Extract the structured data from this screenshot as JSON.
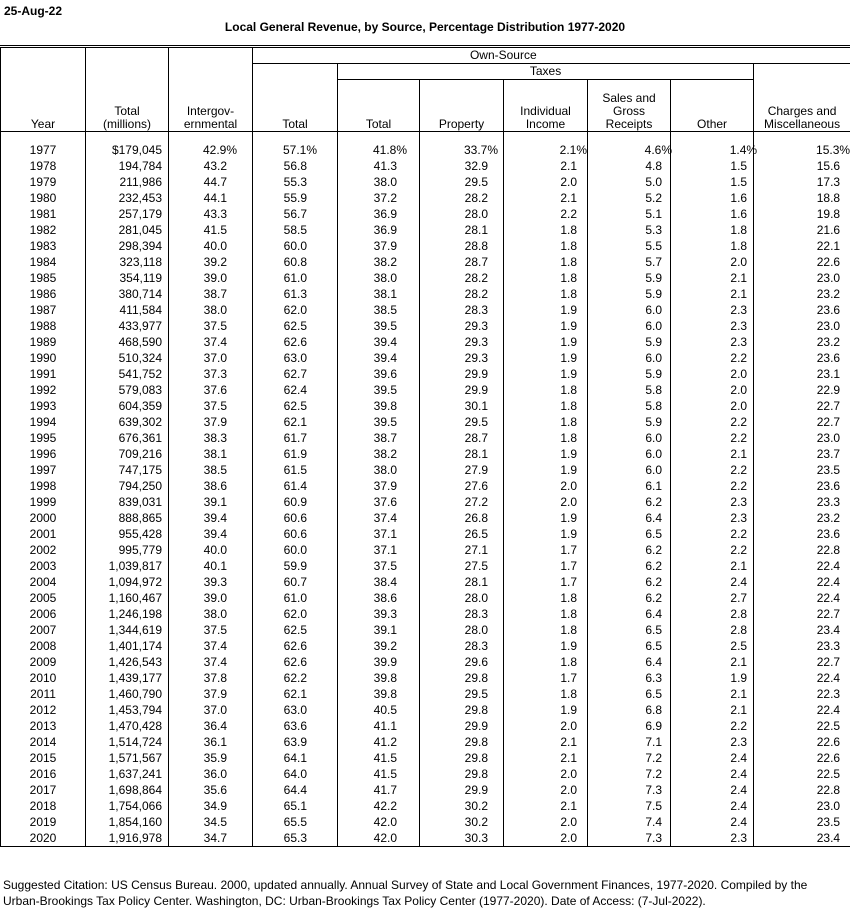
{
  "report": {
    "date": "25-Aug-22",
    "title": "Local General Revenue, by Source, Percentage Distribution 1977-2020"
  },
  "table": {
    "headers": {
      "own_source": "Own-Source",
      "taxes": "Taxes",
      "year": "Year",
      "total_millions": "Total\n(millions)",
      "intergovernmental": "Intergov-\nernmental",
      "own_source_total": "Total",
      "taxes_total": "Total",
      "property": "Property",
      "individual_income": "Individual\nIncome",
      "sales_gross_receipts": "Sales and\nGross\nReceipts",
      "other": "Other",
      "charges_misc": "Charges and\nMiscellaneous"
    },
    "column_keys": [
      "year",
      "total_millions",
      "intergovernmental",
      "os_total",
      "tax_total",
      "property",
      "individual_income",
      "sales_gross_receipts",
      "other",
      "charges_misc"
    ],
    "rows": [
      [
        "1977",
        "$179,045",
        "42.9%",
        "57.1%",
        "41.8%",
        "33.7%",
        "2.1%",
        "4.6%",
        "1.4%",
        "15.3%"
      ],
      [
        "1978",
        "194,784",
        "43.2",
        "56.8",
        "41.3",
        "32.9",
        "2.1",
        "4.8",
        "1.5",
        "15.6"
      ],
      [
        "1979",
        "211,986",
        "44.7",
        "55.3",
        "38.0",
        "29.5",
        "2.0",
        "5.0",
        "1.5",
        "17.3"
      ],
      [
        "1980",
        "232,453",
        "44.1",
        "55.9",
        "37.2",
        "28.2",
        "2.1",
        "5.2",
        "1.6",
        "18.8"
      ],
      [
        "1981",
        "257,179",
        "43.3",
        "56.7",
        "36.9",
        "28.0",
        "2.2",
        "5.1",
        "1.6",
        "19.8"
      ],
      [
        "1982",
        "281,045",
        "41.5",
        "58.5",
        "36.9",
        "28.1",
        "1.8",
        "5.3",
        "1.8",
        "21.6"
      ],
      [
        "1983",
        "298,394",
        "40.0",
        "60.0",
        "37.9",
        "28.8",
        "1.8",
        "5.5",
        "1.8",
        "22.1"
      ],
      [
        "1984",
        "323,118",
        "39.2",
        "60.8",
        "38.2",
        "28.7",
        "1.8",
        "5.7",
        "2.0",
        "22.6"
      ],
      [
        "1985",
        "354,119",
        "39.0",
        "61.0",
        "38.0",
        "28.2",
        "1.8",
        "5.9",
        "2.1",
        "23.0"
      ],
      [
        "1986",
        "380,714",
        "38.7",
        "61.3",
        "38.1",
        "28.2",
        "1.8",
        "5.9",
        "2.1",
        "23.2"
      ],
      [
        "1987",
        "411,584",
        "38.0",
        "62.0",
        "38.5",
        "28.3",
        "1.9",
        "6.0",
        "2.3",
        "23.6"
      ],
      [
        "1988",
        "433,977",
        "37.5",
        "62.5",
        "39.5",
        "29.3",
        "1.9",
        "6.0",
        "2.3",
        "23.0"
      ],
      [
        "1989",
        "468,590",
        "37.4",
        "62.6",
        "39.4",
        "29.3",
        "1.9",
        "5.9",
        "2.3",
        "23.2"
      ],
      [
        "1990",
        "510,324",
        "37.0",
        "63.0",
        "39.4",
        "29.3",
        "1.9",
        "6.0",
        "2.2",
        "23.6"
      ],
      [
        "1991",
        "541,752",
        "37.3",
        "62.7",
        "39.6",
        "29.9",
        "1.9",
        "5.9",
        "2.0",
        "23.1"
      ],
      [
        "1992",
        "579,083",
        "37.6",
        "62.4",
        "39.5",
        "29.9",
        "1.8",
        "5.8",
        "2.0",
        "22.9"
      ],
      [
        "1993",
        "604,359",
        "37.5",
        "62.5",
        "39.8",
        "30.1",
        "1.8",
        "5.8",
        "2.0",
        "22.7"
      ],
      [
        "1994",
        "639,302",
        "37.9",
        "62.1",
        "39.5",
        "29.5",
        "1.8",
        "5.9",
        "2.2",
        "22.7"
      ],
      [
        "1995",
        "676,361",
        "38.3",
        "61.7",
        "38.7",
        "28.7",
        "1.8",
        "6.0",
        "2.2",
        "23.0"
      ],
      [
        "1996",
        "709,216",
        "38.1",
        "61.9",
        "38.2",
        "28.1",
        "1.9",
        "6.0",
        "2.1",
        "23.7"
      ],
      [
        "1997",
        "747,175",
        "38.5",
        "61.5",
        "38.0",
        "27.9",
        "1.9",
        "6.0",
        "2.2",
        "23.5"
      ],
      [
        "1998",
        "794,250",
        "38.6",
        "61.4",
        "37.9",
        "27.6",
        "2.0",
        "6.1",
        "2.2",
        "23.6"
      ],
      [
        "1999",
        "839,031",
        "39.1",
        "60.9",
        "37.6",
        "27.2",
        "2.0",
        "6.2",
        "2.3",
        "23.3"
      ],
      [
        "2000",
        "888,865",
        "39.4",
        "60.6",
        "37.4",
        "26.8",
        "1.9",
        "6.4",
        "2.3",
        "23.2"
      ],
      [
        "2001",
        "955,428",
        "39.4",
        "60.6",
        "37.1",
        "26.5",
        "1.9",
        "6.5",
        "2.2",
        "23.6"
      ],
      [
        "2002",
        "995,779",
        "40.0",
        "60.0",
        "37.1",
        "27.1",
        "1.7",
        "6.2",
        "2.2",
        "22.8"
      ],
      [
        "2003",
        "1,039,817",
        "40.1",
        "59.9",
        "37.5",
        "27.5",
        "1.7",
        "6.2",
        "2.1",
        "22.4"
      ],
      [
        "2004",
        "1,094,972",
        "39.3",
        "60.7",
        "38.4",
        "28.1",
        "1.7",
        "6.2",
        "2.4",
        "22.4"
      ],
      [
        "2005",
        "1,160,467",
        "39.0",
        "61.0",
        "38.6",
        "28.0",
        "1.8",
        "6.2",
        "2.7",
        "22.4"
      ],
      [
        "2006",
        "1,246,198",
        "38.0",
        "62.0",
        "39.3",
        "28.3",
        "1.8",
        "6.4",
        "2.8",
        "22.7"
      ],
      [
        "2007",
        "1,344,619",
        "37.5",
        "62.5",
        "39.1",
        "28.0",
        "1.8",
        "6.5",
        "2.8",
        "23.4"
      ],
      [
        "2008",
        "1,401,174",
        "37.4",
        "62.6",
        "39.2",
        "28.3",
        "1.9",
        "6.5",
        "2.5",
        "23.3"
      ],
      [
        "2009",
        "1,426,543",
        "37.4",
        "62.6",
        "39.9",
        "29.6",
        "1.8",
        "6.4",
        "2.1",
        "22.7"
      ],
      [
        "2010",
        "1,439,177",
        "37.8",
        "62.2",
        "39.8",
        "29.8",
        "1.7",
        "6.3",
        "1.9",
        "22.4"
      ],
      [
        "2011",
        "1,460,790",
        "37.9",
        "62.1",
        "39.8",
        "29.5",
        "1.8",
        "6.5",
        "2.1",
        "22.3"
      ],
      [
        "2012",
        "1,453,794",
        "37.0",
        "63.0",
        "40.5",
        "29.8",
        "1.9",
        "6.8",
        "2.1",
        "22.4"
      ],
      [
        "2013",
        "1,470,428",
        "36.4",
        "63.6",
        "41.1",
        "29.9",
        "2.0",
        "6.9",
        "2.2",
        "22.5"
      ],
      [
        "2014",
        "1,514,724",
        "36.1",
        "63.9",
        "41.2",
        "29.8",
        "2.1",
        "7.1",
        "2.3",
        "22.6"
      ],
      [
        "2015",
        "1,571,567",
        "35.9",
        "64.1",
        "41.5",
        "29.8",
        "2.1",
        "7.2",
        "2.4",
        "22.6"
      ],
      [
        "2016",
        "1,637,241",
        "36.0",
        "64.0",
        "41.5",
        "29.8",
        "2.0",
        "7.2",
        "2.4",
        "22.5"
      ],
      [
        "2017",
        "1,698,864",
        "35.6",
        "64.4",
        "41.7",
        "29.9",
        "2.0",
        "7.3",
        "2.4",
        "22.8"
      ],
      [
        "2018",
        "1,754,066",
        "34.9",
        "65.1",
        "42.2",
        "30.2",
        "2.1",
        "7.5",
        "2.4",
        "23.0"
      ],
      [
        "2019",
        "1,854,160",
        "34.5",
        "65.5",
        "42.0",
        "30.2",
        "2.0",
        "7.4",
        "2.4",
        "23.5"
      ],
      [
        "2020",
        "1,916,978",
        "34.7",
        "65.3",
        "42.0",
        "30.3",
        "2.0",
        "7.3",
        "2.3",
        "23.4"
      ]
    ]
  },
  "citation": {
    "line1": "Suggested Citation: US Census Bureau. 2000, updated annually. Annual Survey of State and Local Government Finances, 1977-2020. Compiled by the",
    "line2": "Urban-Brookings Tax Policy Center. Washington, DC: Urban-Brookings Tax Policy Center (1977-2020). Date of Access: (7-Jul-2022)."
  }
}
